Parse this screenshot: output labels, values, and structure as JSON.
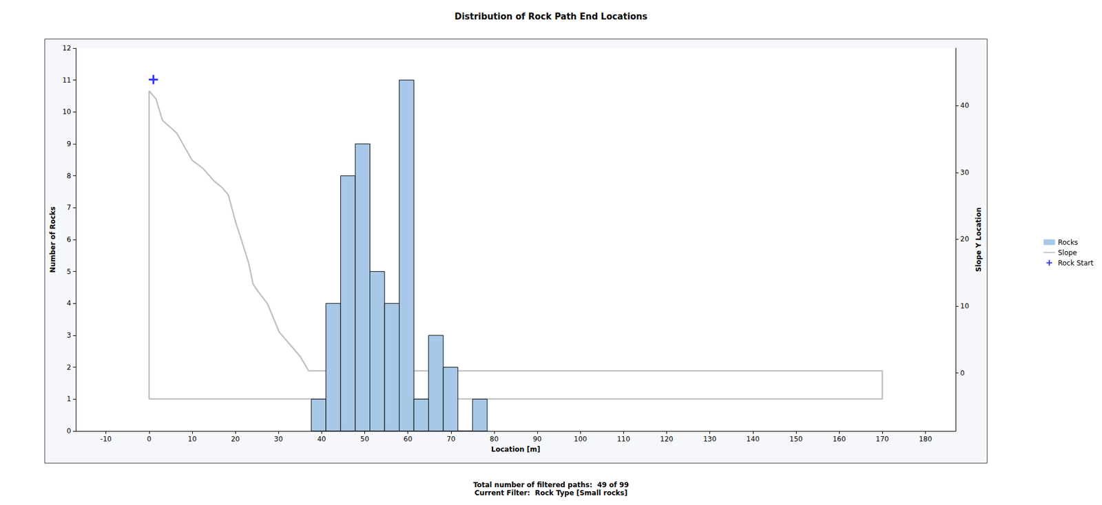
{
  "chart_data": {
    "type": "histogram",
    "title": "Distribution of Rock Path End Locations",
    "x_label": "Location [m]",
    "y_label": "Number of Rocks",
    "y2_label": "Slope Y Location",
    "xlim": [
      -17,
      187
    ],
    "xticks": [
      -10,
      0,
      10,
      20,
      30,
      40,
      50,
      60,
      70,
      80,
      90,
      100,
      110,
      120,
      130,
      140,
      150,
      160,
      170,
      180
    ],
    "ylim": [
      0,
      12
    ],
    "yticks": [
      0,
      1,
      2,
      3,
      4,
      5,
      6,
      7,
      8,
      9,
      10,
      11,
      12
    ],
    "y2lim": [
      -8.7,
      48.6
    ],
    "y2ticks": [
      0,
      10,
      20,
      30,
      40
    ],
    "grid": false,
    "legend": "right",
    "footer": [
      "Total number of filtered paths:  49 of 99",
      "Current Filter:  Rock Type [Small rocks]"
    ],
    "series": [
      {
        "name": "Rocks",
        "type": "bar",
        "color": "#a7c8e7",
        "bins": [
          37.6,
          41.0,
          44.4,
          47.8,
          51.2,
          54.6,
          58.0,
          61.4,
          64.8,
          68.2,
          71.6,
          75.0,
          78.4
        ],
        "values": [
          1,
          4,
          8,
          9,
          5,
          4,
          11,
          1,
          3,
          2,
          0,
          1
        ]
      },
      {
        "name": "Slope",
        "type": "line",
        "axis": "y2",
        "color": "#c0c0c0",
        "x": [
          0,
          1.6,
          3.1,
          6.4,
          10,
          12.5,
          15.1,
          17,
          18.4,
          20,
          22,
          23.1,
          24.1,
          25.6,
          27.4,
          30.2,
          32.6,
          35.1,
          37,
          170,
          170,
          0,
          0
        ],
        "values": [
          42.2,
          41.0,
          37.8,
          35.9,
          31.8,
          30.6,
          28.7,
          27.7,
          26.6,
          22.7,
          18.7,
          16.4,
          13.3,
          11.9,
          10.4,
          6.1,
          4.3,
          2.4,
          0.3,
          0.3,
          -3.9,
          -3.9,
          42.2
        ]
      },
      {
        "name": "Rock Start",
        "type": "scatter",
        "axis": "y2",
        "color": "#0000ff",
        "marker": "+",
        "x": [
          1.0
        ],
        "values": [
          43.9
        ]
      }
    ]
  }
}
